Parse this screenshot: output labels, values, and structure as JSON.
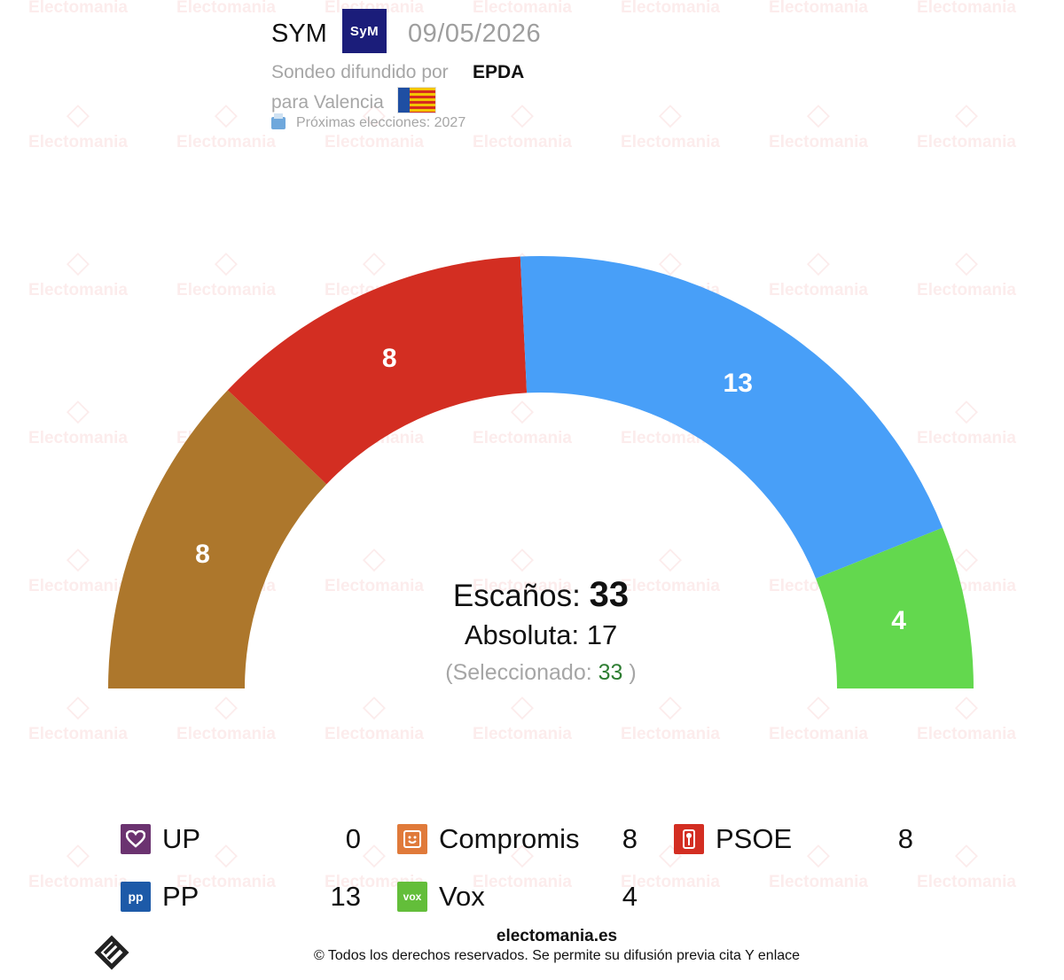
{
  "header": {
    "pollster": "SYM",
    "pollster_logo_text": "SyM",
    "date": "09/05/2026",
    "disseminated_by_label": "Sondeo difundido por",
    "media": "EPDA",
    "region_label": "para Valencia",
    "next_elections": "Próximas elecciones: 2027"
  },
  "watermark": {
    "text": "Electomania"
  },
  "chart_data": {
    "type": "pie",
    "subtype": "hemicycle",
    "total_seats": 33,
    "majority": 17,
    "selected": 33,
    "segments": [
      {
        "party": "Compromis",
        "seats": 8,
        "color": "#ad772c"
      },
      {
        "party": "PSOE",
        "seats": 8,
        "color": "#d32e22"
      },
      {
        "party": "PP",
        "seats": 13,
        "color": "#489ff8"
      },
      {
        "party": "Vox",
        "seats": 4,
        "color": "#63d84e"
      }
    ]
  },
  "center": {
    "seats_label": "Escaños:",
    "seats_value": "33",
    "majority_label": "Absoluta:",
    "majority_value": "17",
    "selected_open": "(Seleccionado:",
    "selected_value": "33",
    "selected_close": ")"
  },
  "legend": [
    {
      "name": "UP",
      "value": "0",
      "color": "#6b3370",
      "icon": "heart-icon"
    },
    {
      "name": "Compromis",
      "value": "8",
      "color": "#e07a3a",
      "icon": "smile-icon"
    },
    {
      "name": "PSOE",
      "value": "8",
      "color": "#d32e22",
      "icon": "rose-icon"
    },
    {
      "name": "PP",
      "value": "13",
      "color": "#1d5aa8",
      "icon": "pp-logo-icon"
    },
    {
      "name": "Vox",
      "value": "4",
      "color": "#63be3a",
      "icon": "vox-logo-icon"
    }
  ],
  "footer": {
    "site": "electomania.es",
    "rights": "© Todos los derechos reservados. Se permite su difusión previa cita Y enlace"
  }
}
